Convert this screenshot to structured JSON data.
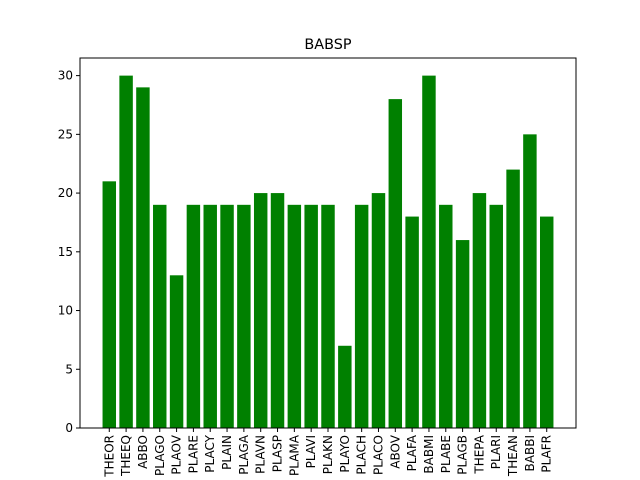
{
  "chart_data": {
    "type": "bar",
    "title": "BABSP",
    "xlabel": "",
    "ylabel": "",
    "categories": [
      "THEOR",
      "THEEQ",
      "ABBO",
      "PLAGO",
      "PLAOV",
      "PLARE",
      "PLACY",
      "PLAIN",
      "PLAGA",
      "PLAVN",
      "PLASP",
      "PLAMA",
      "PLAVI",
      "PLAKN",
      "PLAYO",
      "PLACH",
      "PLACO",
      "ABOV",
      "PLAFA",
      "BABMI",
      "PLABE",
      "PLAGB",
      "THEPA",
      "PLARI",
      "THEAN",
      "BABBI",
      "PLAFR"
    ],
    "values": [
      21,
      30,
      29,
      19,
      13,
      19,
      19,
      19,
      19,
      20,
      20,
      19,
      19,
      19,
      7,
      19,
      20,
      28,
      18,
      30,
      19,
      16,
      20,
      19,
      22,
      25,
      18
    ],
    "ylim": [
      0,
      31.5
    ],
    "yticks": [
      0,
      5,
      10,
      15,
      20,
      25,
      30
    ],
    "bar_color": "#008000",
    "grid": false
  }
}
